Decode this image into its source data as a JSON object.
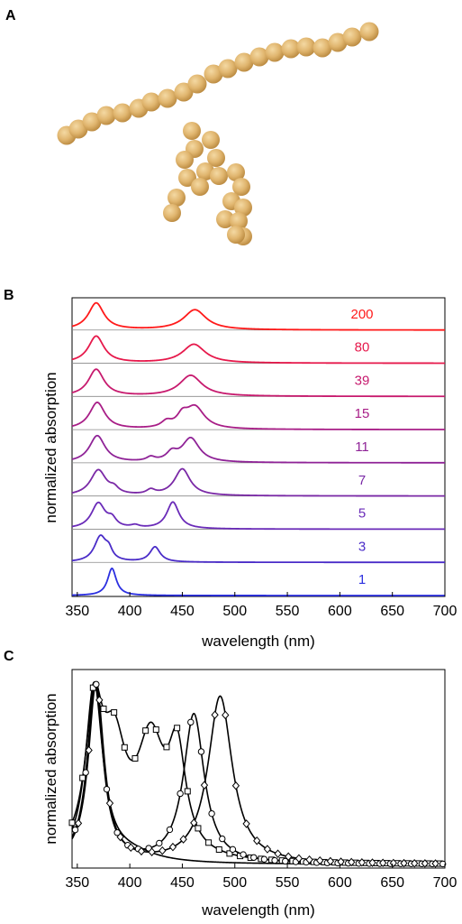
{
  "panels": {
    "a": {
      "letter": "A"
    },
    "b": {
      "letter": "B"
    },
    "c": {
      "letter": "C"
    }
  },
  "colors": {
    "bead_fill": "#e0b56e",
    "bead_highlight": "#f4d9a3",
    "bead_shadow": "#b8873d",
    "axis": "#000000",
    "panel_c_lines": "#000000"
  },
  "chart_data": [
    {
      "type": "line",
      "panel": "B",
      "xlabel": "wavelength (nm)",
      "ylabel": "normalized absorption",
      "xlim": [
        345,
        700
      ],
      "xticks": [
        350,
        400,
        450,
        500,
        550,
        600,
        650,
        700
      ],
      "layout": "stacked traces, one per chain length, each with its own baseline",
      "grid": false,
      "series": [
        {
          "name": "200",
          "color": "#ff1a1a",
          "peaks": [
            [
              368,
              1.0,
              9
            ],
            [
              462,
              0.75,
              13
            ]
          ],
          "minor": []
        },
        {
          "name": "80",
          "color": "#e6194b",
          "peaks": [
            [
              368,
              1.0,
              9
            ],
            [
              461,
              0.7,
              13
            ]
          ],
          "minor": []
        },
        {
          "name": "39",
          "color": "#c71a6e",
          "peaks": [
            [
              368,
              1.0,
              9
            ],
            [
              458,
              0.78,
              13
            ]
          ],
          "minor": []
        },
        {
          "name": "15",
          "color": "#a81e87",
          "peaks": [
            [
              369,
              1.0,
              9
            ],
            [
              462,
              0.82,
              11
            ]
          ],
          "minor": [
            [
              435,
              0.22,
              6
            ],
            [
              450,
              0.38,
              6
            ]
          ]
        },
        {
          "name": "11",
          "color": "#8f2397",
          "peaks": [
            [
              369,
              1.0,
              9
            ],
            [
              458,
              0.9,
              10
            ]
          ],
          "minor": [
            [
              420,
              0.15,
              5
            ],
            [
              440,
              0.3,
              6
            ]
          ]
        },
        {
          "name": "7",
          "color": "#7a29a6",
          "peaks": [
            [
              370,
              1.0,
              9
            ],
            [
              450,
              1.05,
              9
            ]
          ],
          "minor": [
            [
              385,
              0.2,
              5
            ],
            [
              420,
              0.18,
              5
            ]
          ]
        },
        {
          "name": "5",
          "color": "#6a2bb8",
          "peaks": [
            [
              370,
              1.0,
              8
            ],
            [
              441,
              1.05,
              7
            ]
          ],
          "minor": [
            [
              383,
              0.3,
              5
            ],
            [
              405,
              0.1,
              5
            ]
          ]
        },
        {
          "name": "3",
          "color": "#4a2cc8",
          "peaks": [
            [
              372,
              1.0,
              7
            ],
            [
              424,
              0.6,
              6
            ]
          ],
          "minor": [
            [
              380,
              0.35,
              4
            ]
          ]
        },
        {
          "name": "1",
          "color": "#2b2fe0",
          "peaks": [
            [
              383,
              1.0,
              5
            ]
          ],
          "minor": []
        }
      ]
    },
    {
      "type": "line",
      "panel": "C",
      "xlabel": "wavelength (nm)",
      "ylabel": "normalized absorption",
      "xlim": [
        345,
        700
      ],
      "xticks": [
        350,
        400,
        450,
        500,
        550,
        600,
        650,
        700
      ],
      "grid": false,
      "series": [
        {
          "marker": "square",
          "peaks": [
            [
              366,
              1.0,
              10
            ],
            [
              385,
              0.75,
              14
            ],
            [
              420,
              0.82,
              16
            ],
            [
              445,
              0.72,
              10
            ]
          ]
        },
        {
          "marker": "circle",
          "peaks": [
            [
              367,
              1.0,
              9
            ],
            [
              461,
              0.83,
              12
            ]
          ]
        },
        {
          "marker": "diamond",
          "peaks": [
            [
              368,
              1.0,
              9
            ],
            [
              486,
              0.93,
              14
            ]
          ]
        },
        {
          "marker": "none",
          "peaks": [
            [
              366,
              0.98,
              10
            ],
            [
              400,
              0.05,
              30
            ]
          ]
        }
      ]
    }
  ]
}
